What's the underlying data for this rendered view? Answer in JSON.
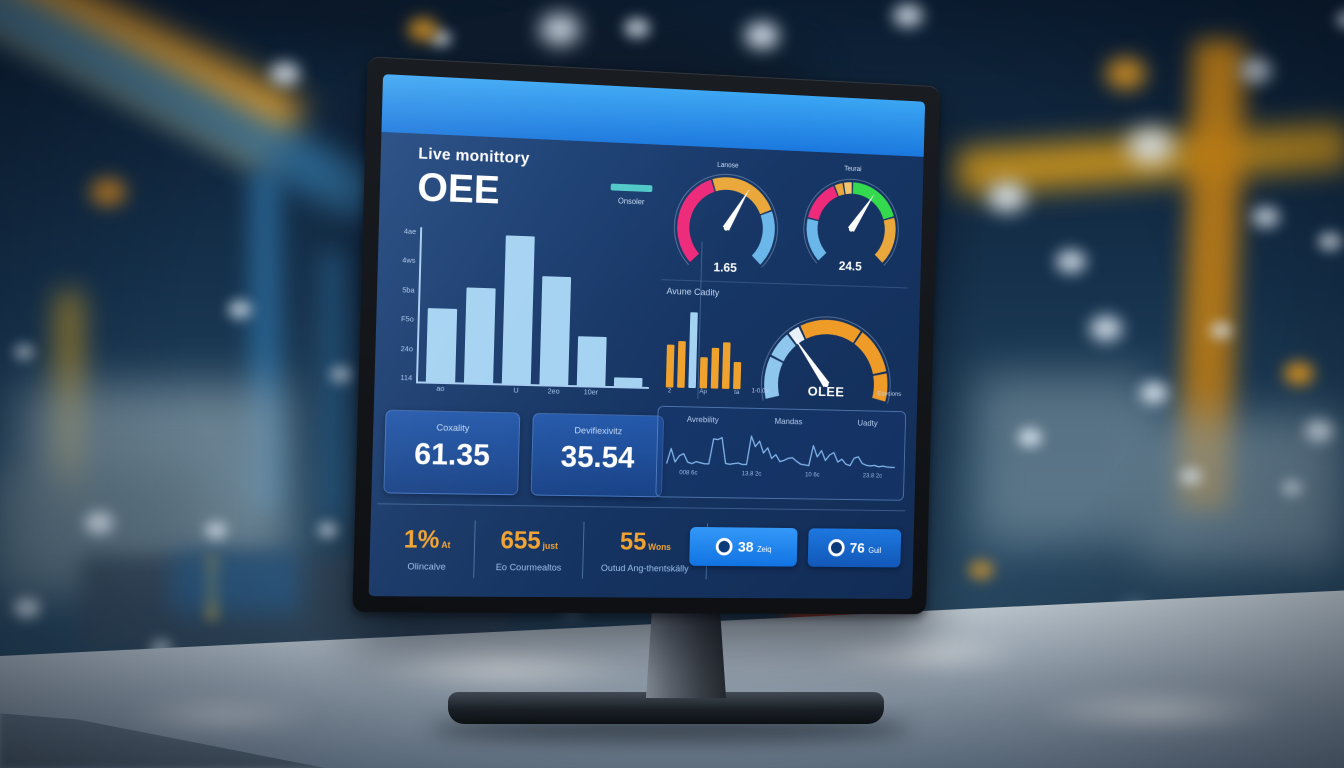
{
  "colors": {
    "header_blue": "#1b78de",
    "accent_light_blue": "#a5d2f2",
    "accent_orange": "#f2a432",
    "legend_teal": "#4fc8c8",
    "button_blue": "#1f8bf5",
    "screen_bg": "#173767",
    "card_bg": "#1e4c97",
    "pink": "#ee2a7b",
    "green": "#35d94e"
  },
  "screen": {
    "title_small": "Live monittory",
    "title_big": "OEE",
    "legend_label": "Onsoler",
    "avune_title": "Avune Cadity",
    "stat_cards": [
      {
        "label": "Coxality",
        "value": "61.35"
      },
      {
        "label": "Devifiexivitz",
        "value": "35.54"
      }
    ],
    "bottom_stats": [
      {
        "value": "1%",
        "suffix": "At",
        "label": "Olincalve"
      },
      {
        "value": "655",
        "suffix": "just",
        "label": "Eo Courmealtos"
      },
      {
        "value": "55",
        "suffix": "Wons",
        "label": "Outud Ang-thentskälly"
      }
    ],
    "buttons": [
      {
        "value": "38",
        "suffix": "Zeiq"
      },
      {
        "value": "76",
        "suffix": "Guil"
      }
    ]
  },
  "chart_data": [
    {
      "id": "hourly_output",
      "type": "bar",
      "title": "OEE",
      "values": [
        48,
        62,
        97,
        71,
        32,
        6
      ],
      "bar_color": "#a5d2f2",
      "y_ticks": [
        "4ae",
        "4ws",
        "5ba",
        "F5o",
        "24o",
        "114"
      ],
      "x_ticks": [
        "ao",
        "",
        "U",
        "2eo",
        "10er",
        ""
      ],
      "legend": "Onsoler",
      "ylim": [
        0,
        100
      ],
      "grid": false
    },
    {
      "id": "gauge_left",
      "type": "gauge",
      "title": "Lanose",
      "value": "1.65",
      "start": 135,
      "end": 405,
      "needle": 300,
      "segments": [
        {
          "color": "#ee2a7b",
          "frac": 0.43
        },
        {
          "color": "#eaa83c",
          "frac": 0.32
        },
        {
          "color": "#6cb7ea",
          "frac": 0.25
        }
      ]
    },
    {
      "id": "gauge_right",
      "type": "gauge",
      "title": "Teurai",
      "value": "24.5",
      "start": 135,
      "end": 405,
      "needle": 303,
      "segments": [
        {
          "color": "#6cb7ea",
          "frac": 0.21
        },
        {
          "color": "#ee2a7b",
          "frac": 0.2
        },
        {
          "color": "#eaa83c",
          "frac": 0.045
        },
        {
          "color": "#f3c46a",
          "frac": 0.045
        },
        {
          "color": "#35d94e",
          "frac": 0.27
        },
        {
          "color": "#eaa83c",
          "frac": 0.23
        }
      ]
    },
    {
      "id": "avune_bars",
      "type": "bar",
      "title": "Avune Cadity",
      "values": [
        52,
        56,
        92,
        38,
        50,
        57,
        33
      ],
      "bar_colors": [
        "#efa22e",
        "#efa22e",
        "#a5d2f2",
        "#efa22e",
        "#efa22e",
        "#efa22e",
        "#efa22e"
      ],
      "x_ticks": [
        "2",
        "",
        "",
        "Ap",
        "",
        "",
        "ta"
      ],
      "ylim": [
        0,
        100
      ]
    },
    {
      "id": "oee_gauge",
      "type": "gauge",
      "label_center": "OLEE",
      "tick_left": "1-0.0o",
      "tick_right": "Eovcions",
      "start": 165,
      "end": 375,
      "needle": 233,
      "segments": [
        {
          "color": "#8ec6ee",
          "frac": 0.19
        },
        {
          "color": "#8ec6ee",
          "frac": 0.12
        },
        {
          "color": "#e8f1fa",
          "frac": 0.06
        },
        {
          "color": "#ef9b28",
          "frac": 0.29
        },
        {
          "color": "#ef9b28",
          "frac": 0.21
        },
        {
          "color": "#ef9b28",
          "frac": 0.13
        }
      ]
    },
    {
      "id": "trend",
      "type": "line",
      "labels": [
        "Avrebility",
        "Mandas",
        "Uadty"
      ],
      "x_ticks": [
        "008 6c",
        "13.8 2c",
        "10 6c",
        "23.8 2c"
      ],
      "line_color": "#7fb2e8",
      "ylim": [
        0,
        100
      ],
      "values": [
        5,
        48,
        10,
        28,
        34,
        10,
        6,
        12,
        9,
        6,
        6,
        78,
        76,
        82,
        8,
        6,
        8,
        10,
        6,
        6,
        88,
        58,
        74,
        40,
        55,
        25,
        36,
        16,
        20,
        26,
        28,
        18,
        10,
        8,
        6,
        64,
        32,
        50,
        22,
        38,
        45,
        18,
        26,
        12,
        8,
        30,
        34,
        15,
        10,
        8,
        10,
        6,
        8,
        6,
        5,
        5
      ]
    }
  ]
}
